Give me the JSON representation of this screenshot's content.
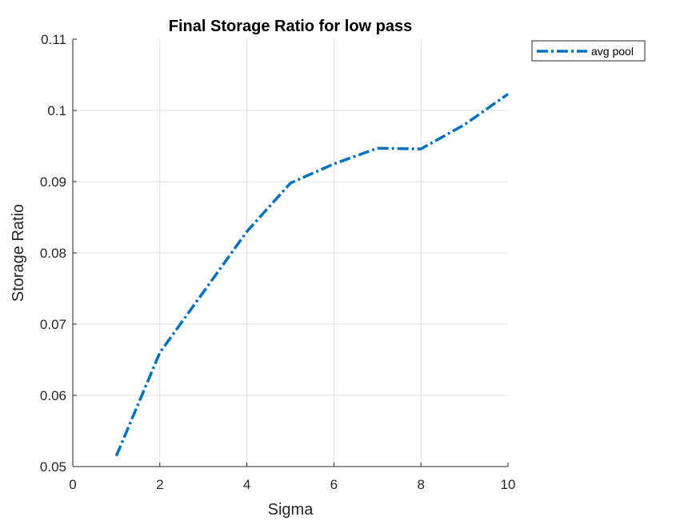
{
  "chart_data": {
    "type": "line",
    "title": "Final Storage Ratio for low pass",
    "xlabel": "Sigma",
    "ylabel": "Storage Ratio",
    "xlim": [
      0,
      10
    ],
    "ylim": [
      0.05,
      0.11
    ],
    "xticks": [
      0,
      2,
      4,
      6,
      8,
      10
    ],
    "yticks": [
      0.05,
      0.06,
      0.07,
      0.08,
      0.09,
      0.1,
      0.11
    ],
    "xtick_labels": [
      "0",
      "2",
      "4",
      "6",
      "8",
      "10"
    ],
    "ytick_labels": [
      "0.05",
      "0.06",
      "0.07",
      "0.08",
      "0.09",
      "0.1",
      "0.11"
    ],
    "grid": true,
    "legend_position": "outside top-right",
    "series": [
      {
        "name": "avg pool",
        "color": "#0072BD",
        "line_style": "dash-dot",
        "x": [
          1,
          2,
          3,
          4,
          5,
          6,
          7,
          8,
          9,
          10
        ],
        "y": [
          0.0515,
          0.066,
          0.0745,
          0.083,
          0.0898,
          0.0925,
          0.0947,
          0.0946,
          0.098,
          0.1023
        ]
      }
    ]
  }
}
